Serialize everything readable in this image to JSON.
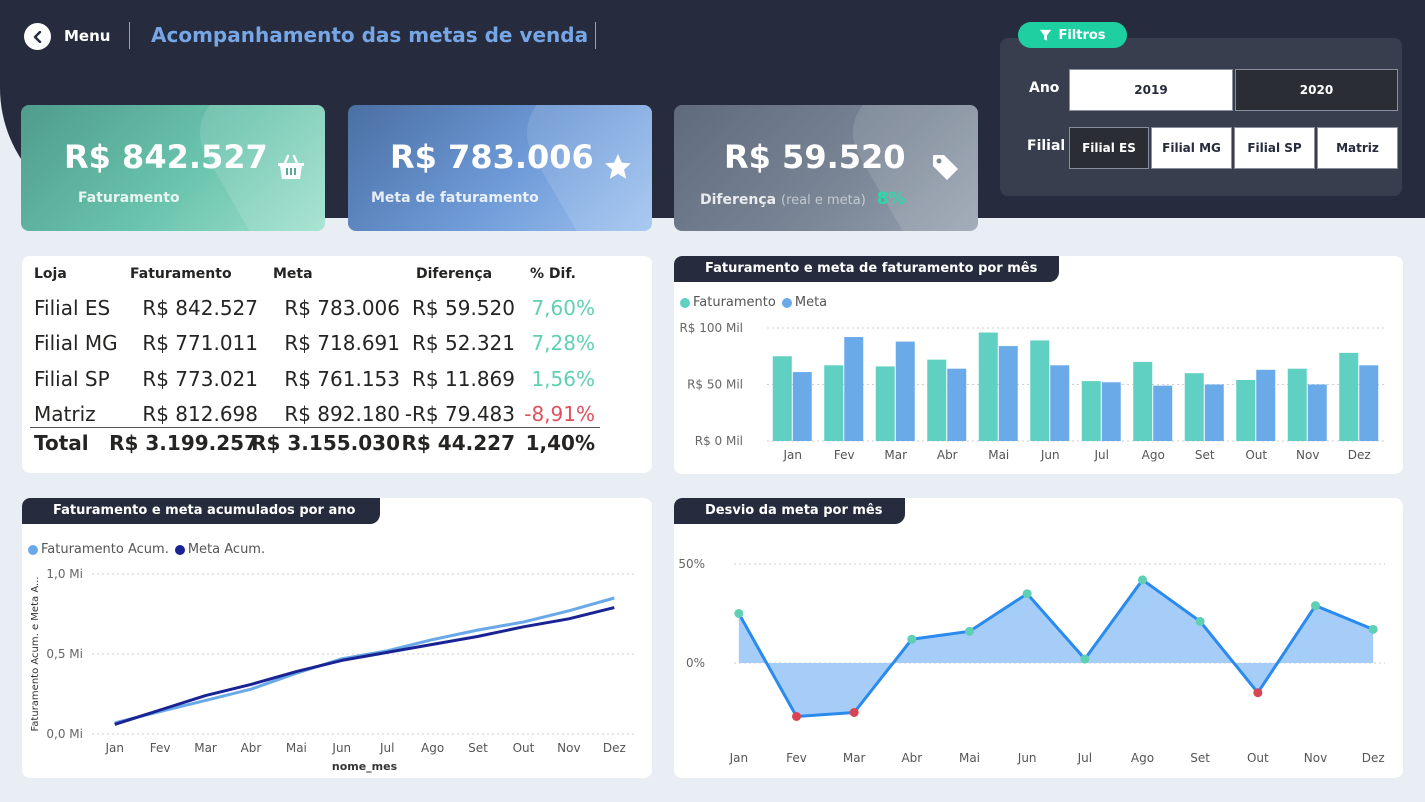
{
  "header": {
    "menu_label": "Menu",
    "title": "Acompanhamento das metas de venda"
  },
  "filters": {
    "pill_label": "Filtros",
    "ano_label": "Ano",
    "filial_label": "Filial",
    "anos": [
      {
        "label": "2019",
        "selected": false
      },
      {
        "label": "2020",
        "selected": true
      }
    ],
    "filiais": [
      {
        "label": "Filial ES",
        "selected": true
      },
      {
        "label": "Filial MG",
        "selected": false
      },
      {
        "label": "Filial SP",
        "selected": false
      },
      {
        "label": "Matriz",
        "selected": false
      }
    ]
  },
  "kpis": {
    "faturamento": {
      "value": "R$ 842.527",
      "label": "Faturamento",
      "icon": "basket-icon"
    },
    "meta": {
      "value": "R$ 783.006",
      "label": "Meta de faturamento",
      "icon": "star-icon"
    },
    "diferenca": {
      "value": "R$ 59.520",
      "label": "Diferença",
      "sublabel": "(real e meta)",
      "pct": "8%",
      "icon": "tag-icon"
    }
  },
  "table": {
    "headers": [
      "Loja",
      "Faturamento",
      "Meta",
      "Diferença",
      "% Dif."
    ],
    "rows": [
      [
        "Filial ES",
        "R$ 842.527",
        "R$ 783.006",
        "R$ 59.520",
        "7,60%"
      ],
      [
        "Filial MG",
        "R$ 771.011",
        "R$ 718.691",
        "R$ 52.321",
        "7,28%"
      ],
      [
        "Filial SP",
        "R$ 773.021",
        "R$ 761.153",
        "R$ 11.869",
        "1,56%"
      ],
      [
        "Matriz",
        "R$ 812.698",
        "R$ 892.180",
        "-R$ 79.483",
        "-8,91%"
      ]
    ],
    "total": [
      "Total",
      "R$ 3.199.257",
      "R$ 3.155.030",
      "R$ 44.227",
      "1,40%"
    ]
  },
  "cards": {
    "bar_title": "Faturamento e meta de faturamento por mês",
    "line_title": "Faturamento e meta acumulados por ano",
    "dev_title": "Desvio da meta por mês"
  },
  "colors": {
    "teal": "#5fd0c2",
    "blue": "#6aaae8",
    "navy": "#1a2394",
    "light_blue": "#6aa9e9",
    "positive_dot": "#5fd0b3",
    "negative_dot": "#d94452",
    "area_fill": "#a6cdf7",
    "area_line": "#2a8aee"
  },
  "chart_data": [
    {
      "type": "bar",
      "title": "Faturamento e meta de faturamento por mês",
      "categories": [
        "Jan",
        "Fev",
        "Mar",
        "Abr",
        "Mai",
        "Jun",
        "Jul",
        "Ago",
        "Set",
        "Out",
        "Nov",
        "Dez"
      ],
      "series": [
        {
          "name": "Faturamento",
          "values": [
            75,
            67,
            66,
            72,
            96,
            89,
            53,
            70,
            60,
            54,
            64,
            78
          ]
        },
        {
          "name": "Meta",
          "values": [
            61,
            92,
            88,
            64,
            84,
            67,
            52,
            49,
            50,
            63,
            50,
            67
          ]
        }
      ],
      "ylim": [
        0,
        100
      ],
      "yticks": [
        "R$ 0 Mil",
        "R$ 50 Mil",
        "R$ 100 Mil"
      ],
      "legend": "top-left",
      "grid": true
    },
    {
      "type": "line",
      "title": "Faturamento e meta acumulados por ano",
      "categories": [
        "Jan",
        "Fev",
        "Mar",
        "Abr",
        "Mai",
        "Jun",
        "Jul",
        "Ago",
        "Set",
        "Out",
        "Nov",
        "Dez"
      ],
      "series": [
        {
          "name": "Faturamento Acum.",
          "values": [
            0.07,
            0.14,
            0.21,
            0.28,
            0.38,
            0.47,
            0.52,
            0.59,
            0.65,
            0.7,
            0.77,
            0.85
          ]
        },
        {
          "name": "Meta Acum.",
          "values": [
            0.06,
            0.15,
            0.24,
            0.31,
            0.39,
            0.46,
            0.51,
            0.56,
            0.61,
            0.67,
            0.72,
            0.79
          ]
        }
      ],
      "ylim": [
        0,
        1.0
      ],
      "yticks": [
        "0,0 Mi",
        "0,5 Mi",
        "1,0 Mi"
      ],
      "xlabel": "nome_mes",
      "ylabel": "Faturamento Acum. e Meta A...",
      "legend": "top-left",
      "grid": true
    },
    {
      "type": "area",
      "title": "Desvio da meta por mês",
      "categories": [
        "Jan",
        "Fev",
        "Mar",
        "Abr",
        "Mai",
        "Jun",
        "Jul",
        "Ago",
        "Set",
        "Out",
        "Nov",
        "Dez"
      ],
      "values": [
        25,
        -27,
        -25,
        12,
        16,
        35,
        2,
        42,
        21,
        -15,
        29,
        17
      ],
      "unit": "%",
      "yticks": [
        "0%",
        "50%"
      ],
      "grid": true
    }
  ]
}
